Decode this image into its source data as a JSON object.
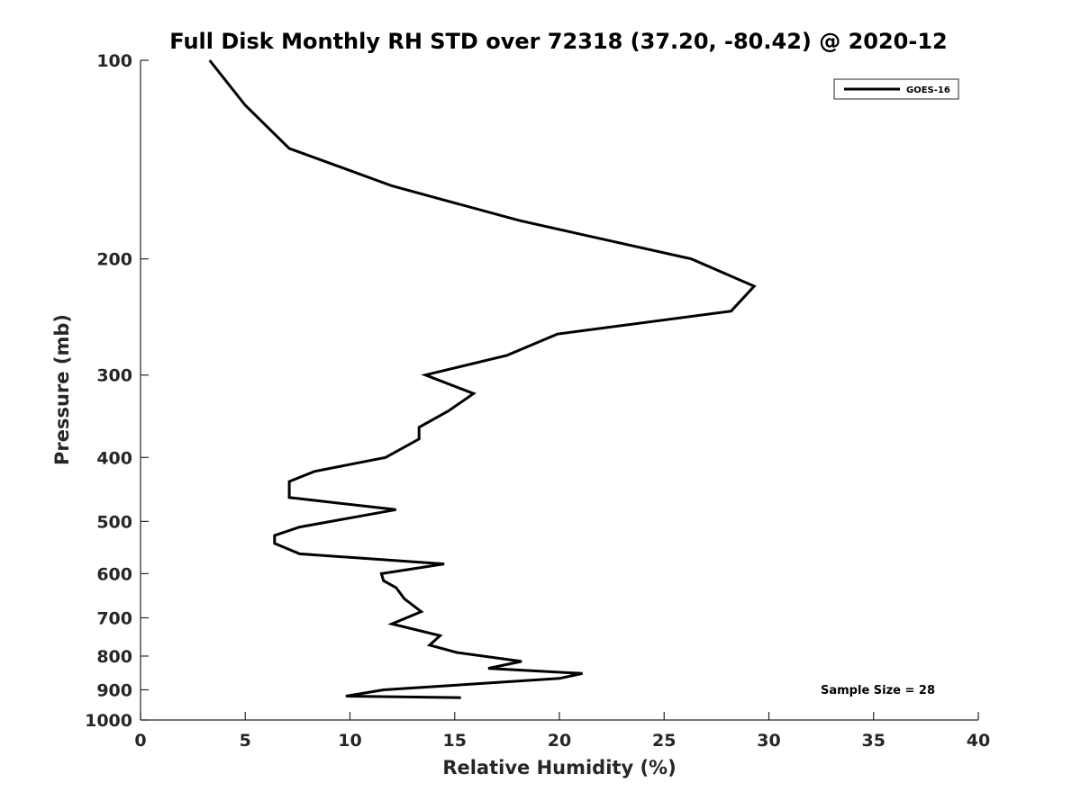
{
  "chart_data": {
    "type": "line",
    "title": "Full Disk Monthly RH STD over 72318 (37.20, -80.42) @ 2020-12",
    "xlabel": "Relative Humidity (%)",
    "ylabel": "Pressure (mb)",
    "xlim": [
      0,
      40
    ],
    "ylim": [
      100,
      1000
    ],
    "y_scale": "log",
    "y_reversed": true,
    "x_ticks": [
      "0",
      "5",
      "10",
      "15",
      "20",
      "25",
      "30",
      "35",
      "40"
    ],
    "y_ticks": [
      "100",
      "200",
      "300",
      "400",
      "500",
      "600",
      "700",
      "800",
      "900",
      "1000"
    ],
    "grid": false,
    "legend_position": "top-right",
    "annotation": "Sample Size = 28",
    "series": [
      {
        "name": "GOES-16",
        "color": "#000000",
        "points": [
          [
            3.3,
            100
          ],
          [
            5.0,
            117
          ],
          [
            7.1,
            136
          ],
          [
            12.0,
            155
          ],
          [
            18.1,
            175
          ],
          [
            26.3,
            200
          ],
          [
            29.3,
            220
          ],
          [
            28.2,
            240
          ],
          [
            19.9,
            260
          ],
          [
            17.5,
            280
          ],
          [
            13.6,
            300
          ],
          [
            15.9,
            320
          ],
          [
            14.7,
            340
          ],
          [
            13.3,
            360
          ],
          [
            13.3,
            375
          ],
          [
            11.7,
            400
          ],
          [
            8.3,
            420
          ],
          [
            7.1,
            435
          ],
          [
            7.1,
            460
          ],
          [
            12.2,
            480
          ],
          [
            7.6,
            510
          ],
          [
            6.4,
            525
          ],
          [
            6.4,
            540
          ],
          [
            7.6,
            560
          ],
          [
            14.5,
            580
          ],
          [
            11.5,
            600
          ],
          [
            11.6,
            615
          ],
          [
            12.2,
            630
          ],
          [
            12.6,
            655
          ],
          [
            13.4,
            685
          ],
          [
            12.0,
            715
          ],
          [
            14.3,
            745
          ],
          [
            13.8,
            770
          ],
          [
            15.1,
            790
          ],
          [
            18.2,
            815
          ],
          [
            16.6,
            835
          ],
          [
            21.1,
            850
          ],
          [
            20.0,
            865
          ],
          [
            11.6,
            900
          ],
          [
            9.8,
            920
          ],
          [
            15.3,
            925
          ]
        ]
      }
    ]
  }
}
